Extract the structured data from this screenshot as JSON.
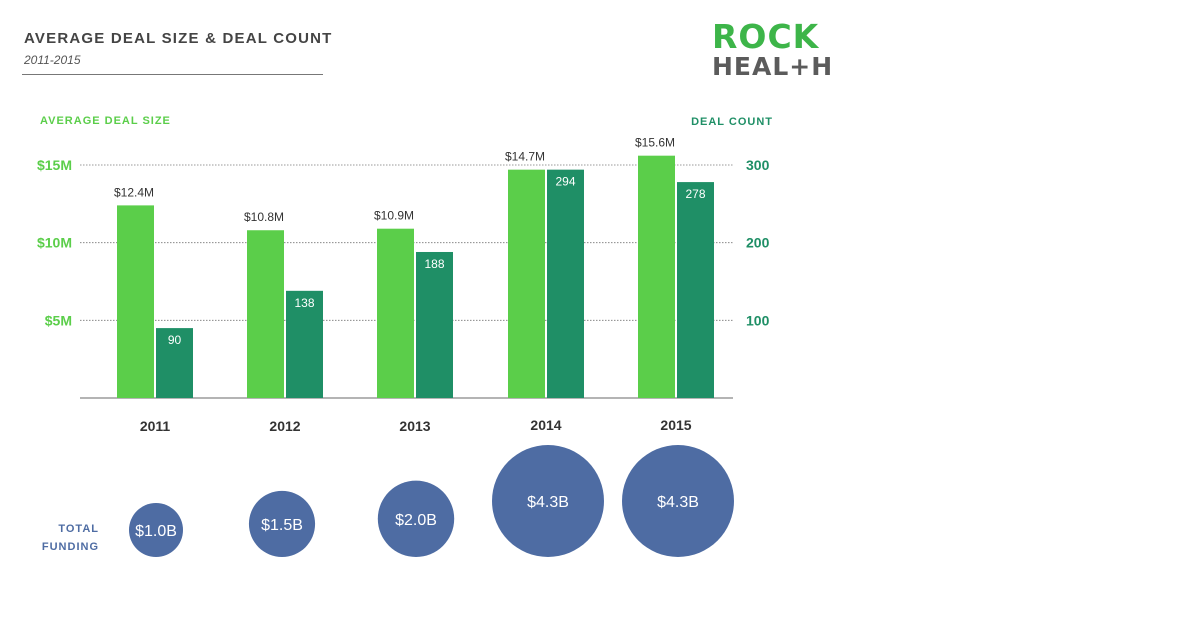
{
  "header": {
    "title": "AVERAGE DEAL SIZE & DEAL COUNT",
    "subtitle": "2011-2015"
  },
  "logo": {
    "line1": "ROCK",
    "line2": "HEAL+H",
    "green": "#3db549",
    "gray": "#5b5b5b"
  },
  "colors": {
    "deal_size": "#5bce4a",
    "deal_count": "#1f8f66",
    "funding": "#4e6ca3",
    "left_axis": "#5bce4a",
    "right_axis": "#1f8f66",
    "grid": "#777777"
  },
  "chart_data": [
    {
      "type": "bar",
      "title": "AVERAGE DEAL SIZE & DEAL COUNT",
      "subtitle": "2011-2015",
      "categories": [
        "2011",
        "2012",
        "2013",
        "2014",
        "2015"
      ],
      "series": [
        {
          "name": "AVERAGE DEAL SIZE",
          "axis": "left",
          "unit": "$M",
          "values": [
            12.4,
            10.8,
            10.9,
            14.7,
            15.6
          ],
          "labels": [
            "$12.4M",
            "$10.8M",
            "$10.9M",
            "$14.7M",
            "$15.6M"
          ]
        },
        {
          "name": "DEAL COUNT",
          "axis": "right",
          "values": [
            90,
            138,
            188,
            294,
            278
          ],
          "labels": [
            "90",
            "138",
            "188",
            "294",
            "278"
          ]
        }
      ],
      "left_axis": {
        "label": "AVERAGE DEAL SIZE",
        "ylim": [
          0,
          15
        ],
        "ticks": [
          5,
          10,
          15
        ],
        "tick_labels": [
          "$5M",
          "$10M",
          "$15M"
        ]
      },
      "right_axis": {
        "label": "DEAL COUNT",
        "ylim": [
          0,
          300
        ],
        "ticks": [
          100,
          200,
          300
        ],
        "tick_labels": [
          "100",
          "200",
          "300"
        ]
      },
      "grid": true
    },
    {
      "type": "bubble",
      "label": "TOTAL FUNDING",
      "categories": [
        "2011",
        "2012",
        "2013",
        "2014",
        "2015"
      ],
      "values": [
        1.0,
        1.5,
        2.0,
        4.3,
        4.3
      ],
      "unit": "$B",
      "labels": [
        "$1.0B",
        "$1.5B",
        "$2.0B",
        "$4.3B",
        "$4.3B"
      ]
    }
  ]
}
